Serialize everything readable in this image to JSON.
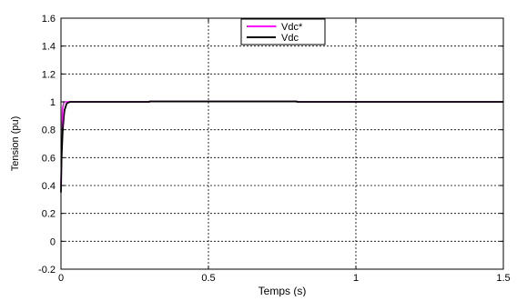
{
  "chart_data": {
    "type": "line",
    "xlabel": "Temps (s)",
    "ylabel": "Tension (pu)",
    "xlim": [
      0,
      1.5
    ],
    "ylim": [
      -0.2,
      1.6
    ],
    "xticks": [
      0,
      0.5,
      1,
      1.5
    ],
    "xtick_labels": [
      "0",
      "0.5",
      "1",
      "1.5"
    ],
    "yticks": [
      -0.2,
      0,
      0.2,
      0.4,
      0.6,
      0.8,
      1,
      1.2,
      1.4,
      1.6
    ],
    "ytick_labels": [
      "-0.2",
      "0",
      "0.2",
      "0.4",
      "0.6",
      "0.8",
      "1",
      "1.2",
      "1.4",
      "1.6"
    ],
    "grid": true,
    "legend_position": "top-center",
    "series": [
      {
        "name": "Vdc*",
        "color": "#ff00ff",
        "x": [
          0,
          0.005,
          0.01,
          0.02,
          0.3,
          0.3,
          0.8,
          0.8,
          1.5
        ],
        "y": [
          0.4,
          0.95,
          1.0,
          1.0,
          1.0,
          1.003,
          1.003,
          1.0,
          1.0
        ]
      },
      {
        "name": "Vdc",
        "color": "#000000",
        "x": [
          0,
          0.002,
          0.004,
          0.006,
          0.008,
          0.01,
          0.012,
          0.015,
          0.018,
          0.02,
          0.025,
          0.03,
          0.04,
          0.3,
          0.3,
          0.8,
          0.8,
          1.5
        ],
        "y": [
          0.35,
          0.6,
          0.7,
          0.8,
          0.85,
          0.9,
          0.94,
          0.96,
          0.98,
          0.99,
          0.995,
          1.0,
          1.0,
          1.0,
          1.003,
          1.003,
          1.0,
          1.0
        ]
      }
    ]
  }
}
